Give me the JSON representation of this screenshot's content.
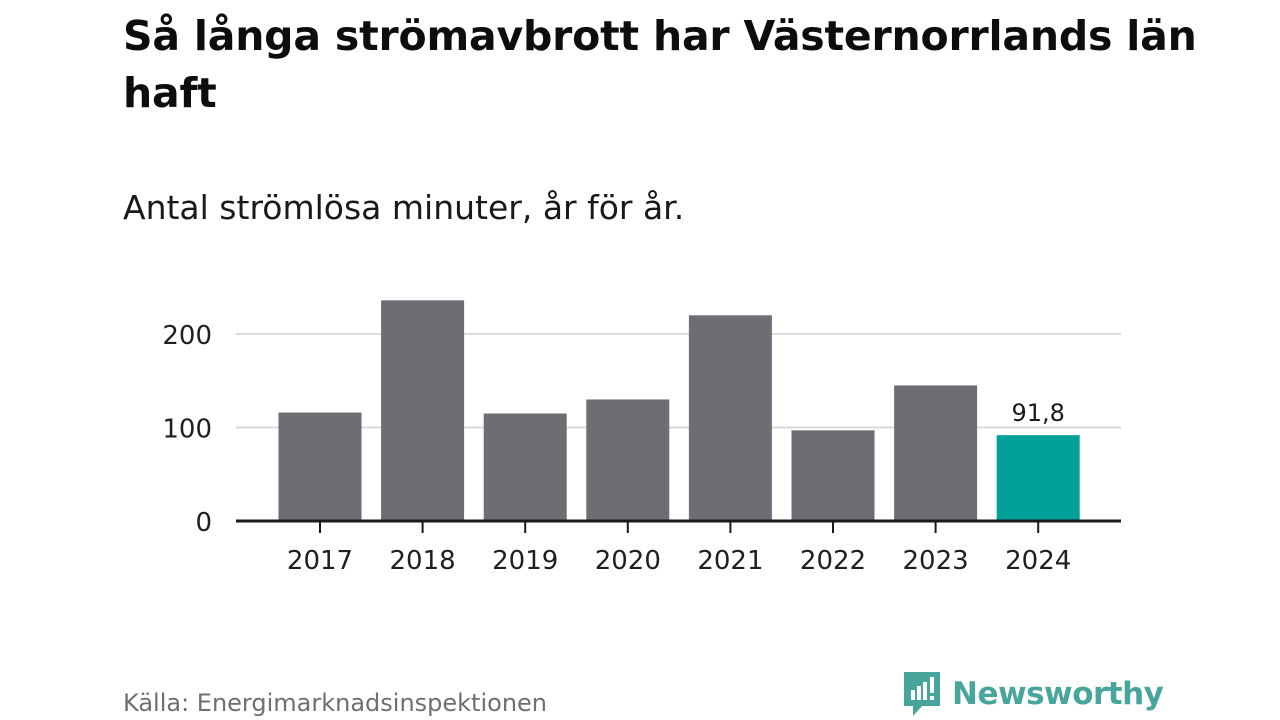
{
  "title": "Så långa strömavbrott har Västernorrlands län haft",
  "subtitle": "Antal strömlösa minuter, år för år.",
  "source": "Källa: Energimarknadsinspektionen",
  "brand": {
    "name": "Newsworthy",
    "logo_icon": "newsworthy-logo-icon",
    "color": "#48a59b"
  },
  "colors": {
    "bar": "#6e6d73",
    "highlight": "#00a199",
    "grid": "#dadada",
    "axis": "#1a1a1a"
  },
  "chart_data": {
    "type": "bar",
    "title": "Så långa strömavbrott har Västernorrlands län haft",
    "subtitle": "Antal strömlösa minuter, år för år.",
    "xlabel": "",
    "ylabel": "",
    "categories": [
      "2017",
      "2018",
      "2019",
      "2020",
      "2021",
      "2022",
      "2023",
      "2024"
    ],
    "values": [
      116,
      236,
      115,
      130,
      220,
      97,
      145,
      91.8
    ],
    "highlight_index": 7,
    "data_labels": [
      {
        "index": 7,
        "text": "91,8"
      }
    ],
    "y_ticks": [
      {
        "value": 0,
        "label": "0"
      },
      {
        "value": 100,
        "label": "100"
      },
      {
        "value": 200,
        "label": "200"
      }
    ],
    "ylim": [
      0,
      240
    ],
    "grid": true,
    "legend": "none"
  }
}
